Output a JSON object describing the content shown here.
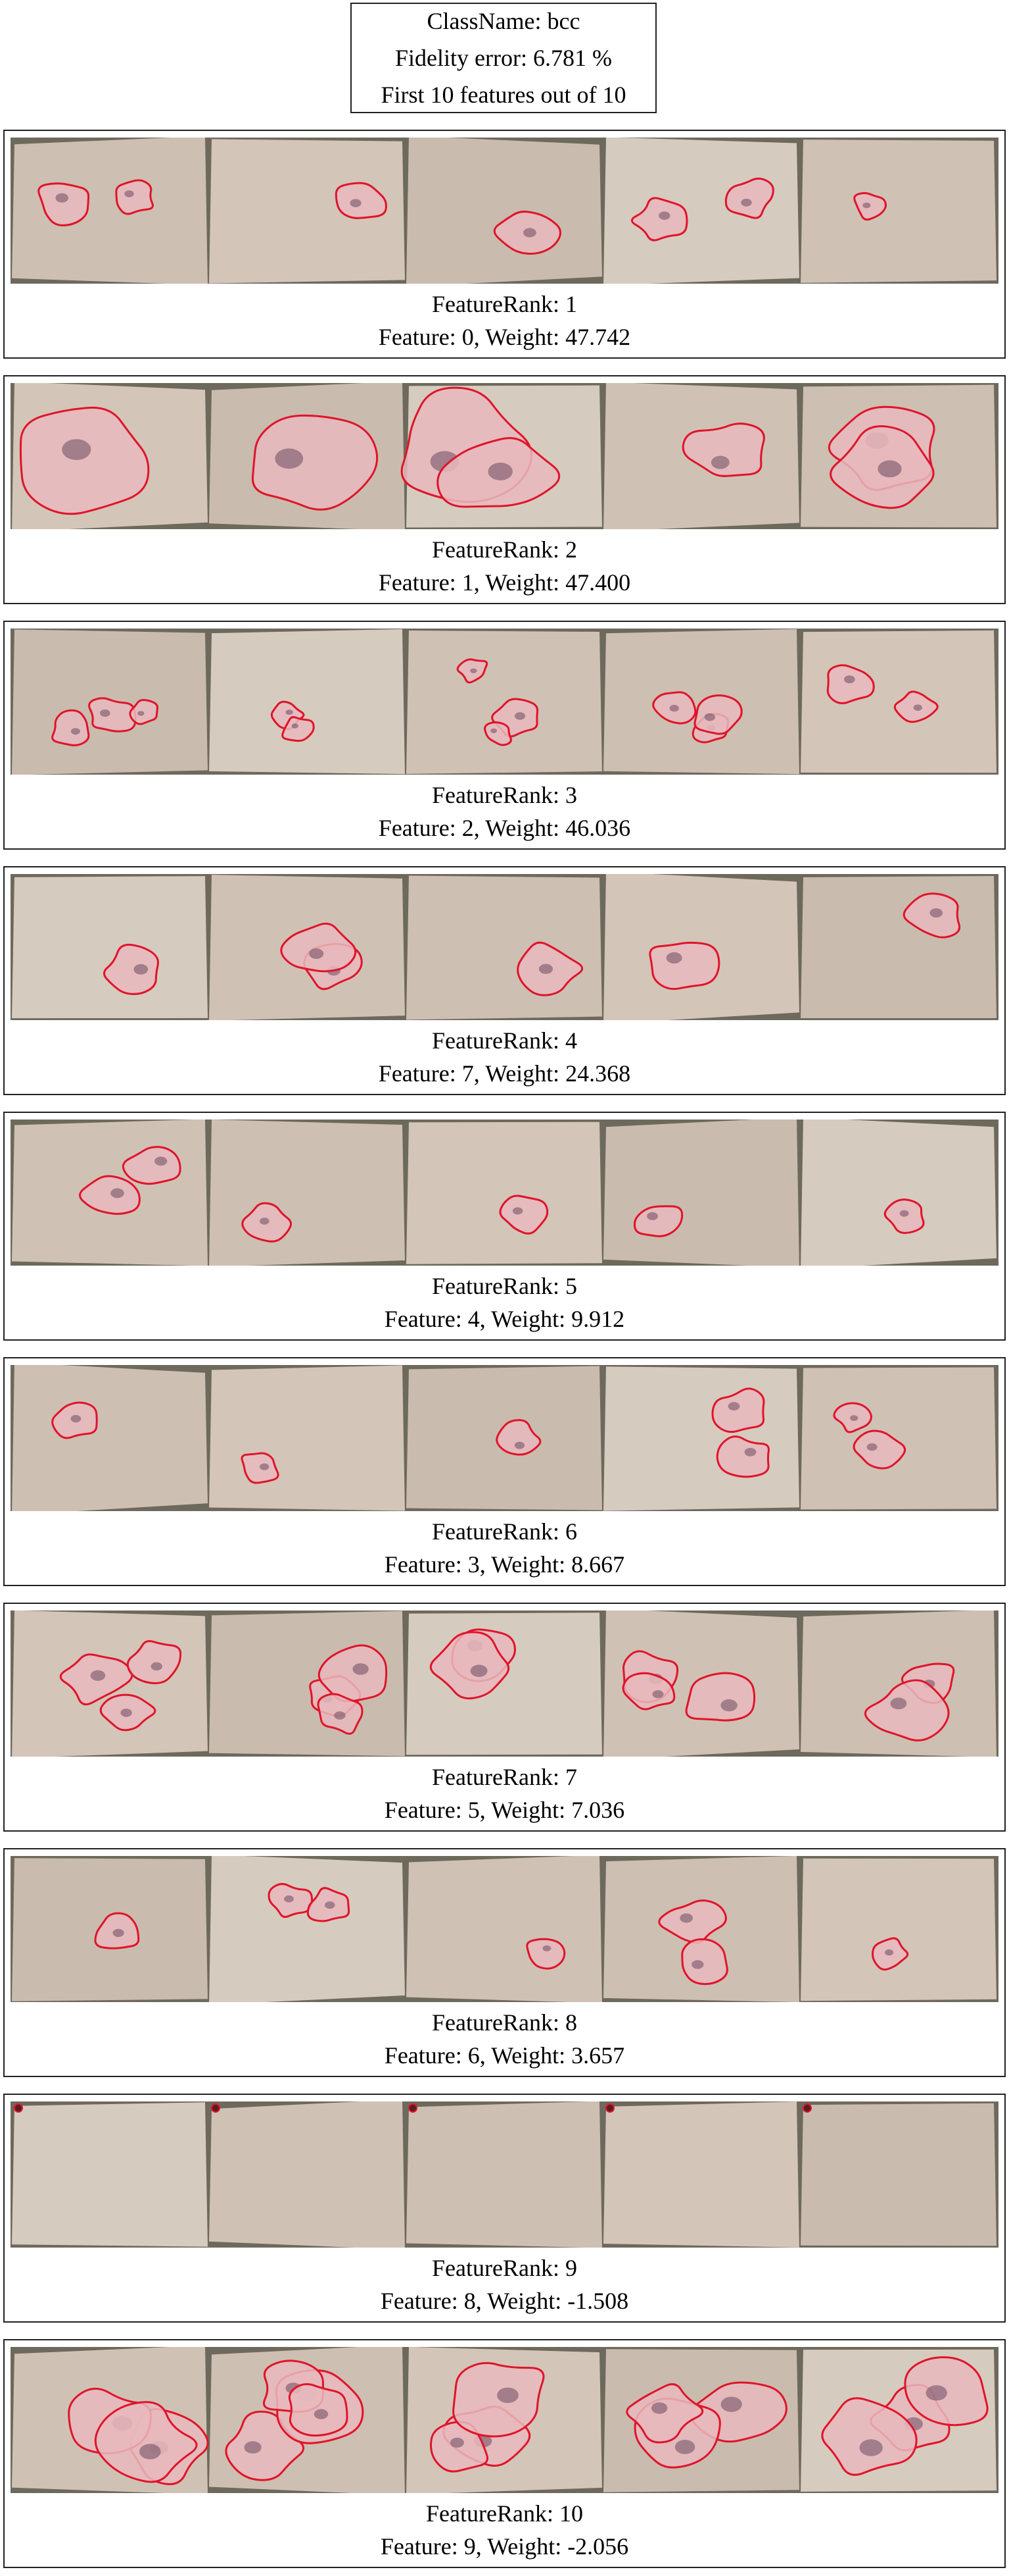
{
  "header": {
    "class_line": "ClassName: bcc",
    "fidelity_line": "Fidelity error: 6.781 %",
    "count_line": "First 10 features out of 10"
  },
  "colors": {
    "background": "#ffffff",
    "border": "#222222",
    "strip_backdrop": "#6d695c",
    "contour": "#e0142a"
  },
  "features": [
    {
      "rank_line": "FeatureRank: 1",
      "feature_line": "Feature: 0, Weight: 47.742"
    },
    {
      "rank_line": "FeatureRank: 2",
      "feature_line": "Feature: 1, Weight: 47.400"
    },
    {
      "rank_line": "FeatureRank: 3",
      "feature_line": "Feature: 2, Weight: 46.036"
    },
    {
      "rank_line": "FeatureRank: 4",
      "feature_line": "Feature: 7, Weight: 24.368"
    },
    {
      "rank_line": "FeatureRank: 5",
      "feature_line": "Feature: 4, Weight: 9.912"
    },
    {
      "rank_line": "FeatureRank: 6",
      "feature_line": "Feature: 3, Weight: 8.667"
    },
    {
      "rank_line": "FeatureRank: 7",
      "feature_line": "Feature: 5, Weight: 7.036"
    },
    {
      "rank_line": "FeatureRank: 8",
      "feature_line": "Feature: 6, Weight: 3.657"
    },
    {
      "rank_line": "FeatureRank: 9",
      "feature_line": "Feature: 8, Weight: -1.508"
    },
    {
      "rank_line": "FeatureRank: 10",
      "feature_line": "Feature: 9, Weight: -2.056"
    }
  ]
}
